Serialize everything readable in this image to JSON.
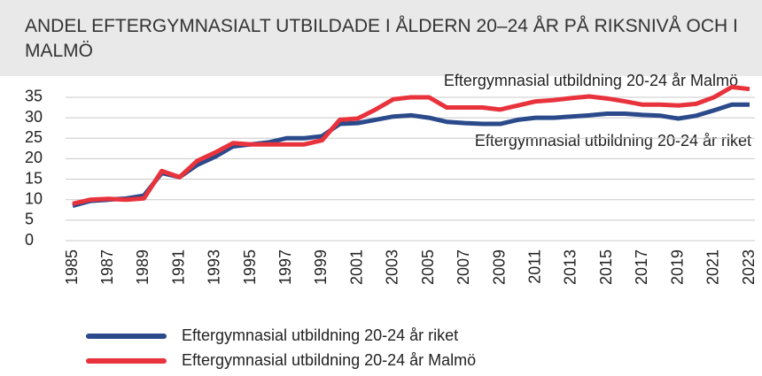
{
  "chart_data": {
    "type": "line",
    "title": "ANDEL EFTERGYMNASIALT UTBILDADE I ÅLDERN 20–24 ÅR PÅ RIKSNIVÅ OCH I MALMÖ",
    "x": [
      1985,
      1986,
      1987,
      1988,
      1989,
      1990,
      1991,
      1992,
      1993,
      1994,
      1995,
      1996,
      1997,
      1998,
      1999,
      2000,
      2001,
      2002,
      2003,
      2004,
      2005,
      2006,
      2007,
      2008,
      2009,
      2010,
      2011,
      2012,
      2013,
      2014,
      2015,
      2016,
      2017,
      2018,
      2019,
      2020,
      2021,
      2022,
      2023
    ],
    "xlim": [
      1985,
      2023
    ],
    "xticks": [
      1985,
      1987,
      1989,
      1991,
      1993,
      1995,
      1997,
      1999,
      2001,
      2003,
      2005,
      2007,
      2009,
      2011,
      2013,
      2015,
      2017,
      2019,
      2021,
      2023
    ],
    "ylim": [
      0,
      38
    ],
    "yticks": [
      0,
      5,
      10,
      15,
      20,
      25,
      30,
      35
    ],
    "grid": true,
    "series": [
      {
        "name": "Eftergymnasial utbildning 20-24 år riket",
        "color": "#2b4a8b",
        "values": [
          8.5,
          9.7,
          10,
          10.3,
          11,
          16.5,
          15.5,
          18.5,
          20.5,
          23,
          23.5,
          24,
          25,
          25,
          25.5,
          28.5,
          28.7,
          29.5,
          30.3,
          30.6,
          30,
          29,
          28.7,
          28.5,
          28.5,
          29.5,
          30,
          30,
          30.3,
          30.6,
          31,
          31,
          30.7,
          30.5,
          29.8,
          30.5,
          31.8,
          33.2,
          33.2
        ]
      },
      {
        "name": "Eftergymnasial utbildning 20-24 år Malmö",
        "color": "#e8323c",
        "values": [
          9,
          10,
          10.2,
          10,
          10.3,
          17,
          15.5,
          19.5,
          21.5,
          23.8,
          23.5,
          23.5,
          23.5,
          23.5,
          24.5,
          29.5,
          29.8,
          32,
          34.5,
          35,
          35,
          32.5,
          32.5,
          32.5,
          32,
          33,
          34,
          34.3,
          34.8,
          35.2,
          34.7,
          34,
          33.2,
          33.2,
          33,
          33.4,
          35,
          37.5,
          37
        ]
      }
    ],
    "annotations": [
      "Eftergymnasial utbildning 20-24 år Malmö",
      "Eftergymnasial utbildning 20-24 år riket"
    ]
  }
}
